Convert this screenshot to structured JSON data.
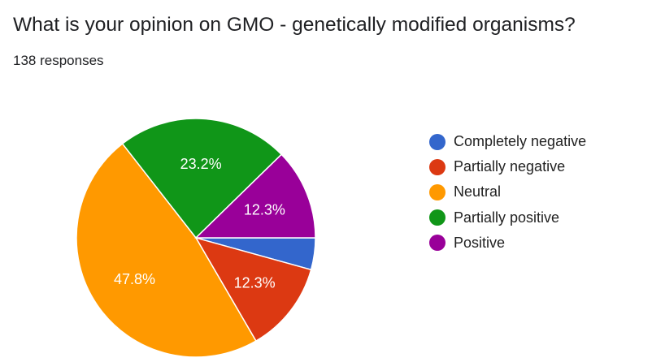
{
  "question": {
    "title": "What is your opinion on GMO - genetically modified organisms?",
    "responses": "138 responses"
  },
  "chart_data": {
    "type": "pie",
    "categories": [
      "Completely negative",
      "Partially negative",
      "Neutral",
      "Partially positive",
      "Positive"
    ],
    "values": [
      4.3,
      12.3,
      47.8,
      23.2,
      12.3
    ],
    "labels": [
      "",
      "12.3%",
      "47.8%",
      "23.2%",
      "12.3%"
    ],
    "colors": [
      "#3366cc",
      "#dc3912",
      "#ff9900",
      "#109618",
      "#990099"
    ],
    "legend_position": "right",
    "start_angle": "3 o'clock, clockwise"
  }
}
